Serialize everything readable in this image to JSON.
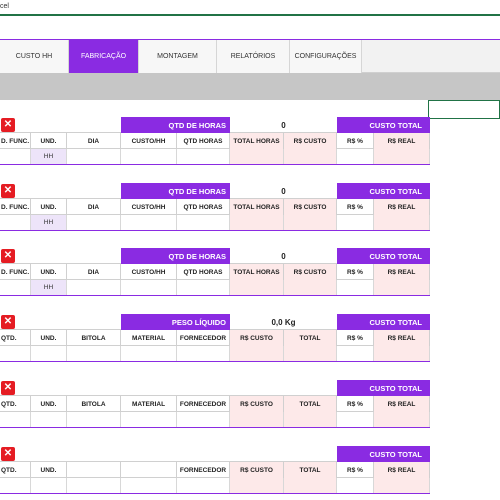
{
  "window": {
    "title_fragment": "cel"
  },
  "tabs": [
    {
      "label": "CUSTO HH",
      "active": false
    },
    {
      "label": "FABRICAÇÃO",
      "active": true
    },
    {
      "label": "MONTAGEM",
      "active": false
    },
    {
      "label": "RELATÓRIOS",
      "active": false
    },
    {
      "label": "CONFIGURAÇÕES",
      "active": false
    }
  ],
  "blocks": [
    {
      "close_icon": "✕",
      "header_label": "QTD DE HORAS",
      "header_value": "0",
      "total_label": "CUSTO TOTAL",
      "columns": [
        "D. FUNC.",
        "UND.",
        "DIA",
        "CUSTO/HH",
        "QTD HORAS",
        "TOTAL HORAS",
        "R$ CUSTO",
        "R$ %",
        "R$ REAL"
      ],
      "row": [
        "",
        "HH",
        "",
        "",
        "",
        "",
        "",
        "",
        ""
      ]
    },
    {
      "close_icon": "✕",
      "header_label": "QTD DE HORAS",
      "header_value": "0",
      "total_label": "CUSTO TOTAL",
      "columns": [
        "D. FUNC.",
        "UND.",
        "DIA",
        "CUSTO/HH",
        "QTD HORAS",
        "TOTAL HORAS",
        "R$ CUSTO",
        "R$ %",
        "R$ REAL"
      ],
      "row": [
        "",
        "HH",
        "",
        "",
        "",
        "",
        "",
        "",
        ""
      ]
    },
    {
      "close_icon": "✕",
      "header_label": "QTD DE HORAS",
      "header_value": "0",
      "total_label": "CUSTO TOTAL",
      "columns": [
        "D. FUNC.",
        "UND.",
        "DIA",
        "CUSTO/HH",
        "QTD HORAS",
        "TOTAL HORAS",
        "R$ CUSTO",
        "R$ %",
        "R$ REAL"
      ],
      "row": [
        "",
        "HH",
        "",
        "",
        "",
        "",
        "",
        "",
        ""
      ]
    },
    {
      "close_icon": "✕",
      "header_label": "PESO LÍQUIDO",
      "header_value": "0,0 Kg",
      "total_label": "CUSTO TOTAL",
      "columns": [
        "QTD.",
        "UND.",
        "BITOLA",
        "MATERIAL",
        "FORNECEDOR",
        "R$ CUSTO",
        "TOTAL",
        "R$ %",
        "R$ REAL"
      ],
      "row": [
        "",
        "",
        "",
        "",
        "",
        "",
        "",
        "",
        ""
      ]
    },
    {
      "close_icon": "✕",
      "header_label": "",
      "header_value": "",
      "total_label": "CUSTO TOTAL",
      "columns": [
        "QTD.",
        "UND.",
        "BITOLA",
        "MATERIAL",
        "FORNECEDOR",
        "R$ CUSTO",
        "TOTAL",
        "R$ %",
        "R$ REAL"
      ],
      "row": [
        "",
        "",
        "",
        "",
        "",
        "",
        "",
        "",
        ""
      ]
    },
    {
      "close_icon": "✕",
      "header_label": "",
      "header_value": "",
      "total_label": "CUSTO TOTAL",
      "columns": [
        "QTD.",
        "UND.",
        "",
        "",
        "FORNECEDOR",
        "R$ CUSTO",
        "TOTAL",
        "R$ %",
        "R$ REAL"
      ],
      "row": [
        "",
        "",
        "",
        "",
        "",
        "",
        "",
        "",
        ""
      ]
    }
  ],
  "colors": {
    "accent": "#8a2be2",
    "close": "#e51c23",
    "excel_green": "#217346",
    "pink_cell": "#fde9e9"
  }
}
